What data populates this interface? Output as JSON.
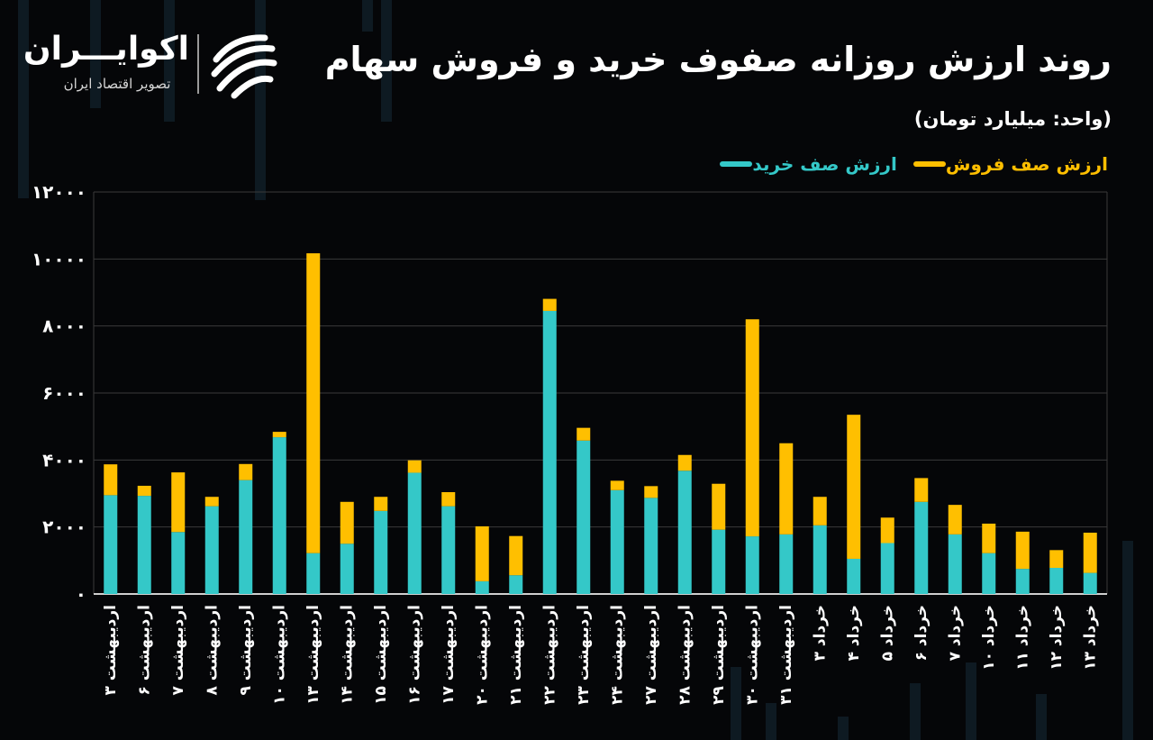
{
  "title": "روند ارزش روزانه صفوف خرید و فروش سهام",
  "unit_label": "(واحد: میلیارد تومان)",
  "logo": {
    "name": "اکوایـــران",
    "subtitle": "تصویر اقتصاد ایران",
    "mark_icon": "ekoiran-swoosh-logo"
  },
  "colors": {
    "background": "#050608",
    "buy": "#34c8c8",
    "sell": "#ffbf00",
    "grid": "#3a3a3a",
    "text": "#ffffff"
  },
  "chart_data": {
    "type": "bar",
    "stacked": true,
    "categories": [
      "۳ اردیبهشت",
      "۶ اردیبهشت",
      "۷ اردیبهشت",
      "۸ اردیبهشت",
      "۹ اردیبهشت",
      "۱۰ اردیبهشت",
      "۱۳ اردیبهشت",
      "۱۴ اردیبهشت",
      "۱۵ اردیبهشت",
      "۱۶ اردیبهشت",
      "۱۷ اردیبهشت",
      "۲۰ اردیبهشت",
      "۲۱ اردیبهشت",
      "۲۲ اردیبهشت",
      "۲۳ اردیبهشت",
      "۲۴ اردیبهشت",
      "۲۷ اردیبهشت",
      "۲۸ اردیبهشت",
      "۲۹ اردیبهشت",
      "۳۰ اردیبهشت",
      "۳۱ اردیبهشت",
      "۳ خرداد",
      "۴ خرداد",
      "۵ خرداد",
      "۶ خرداد",
      "۷ خرداد",
      "۱۰ خرداد",
      "۱۱ خرداد",
      "۱۲ خرداد",
      "۱۳ خرداد"
    ],
    "series": [
      {
        "name": "ارزش صف خرید",
        "color": "#34c8c8",
        "values": [
          2950,
          2930,
          1850,
          2620,
          3400,
          4680,
          1220,
          1500,
          2480,
          3620,
          2620,
          380,
          560,
          8450,
          4580,
          3100,
          2870,
          3680,
          1920,
          1720,
          1780,
          2050,
          1050,
          1520,
          2750,
          1780,
          1220,
          750,
          780,
          630
        ]
      },
      {
        "name": "ارزش صف فروش",
        "color": "#ffbf00",
        "values": [
          920,
          300,
          1780,
          280,
          480,
          160,
          8950,
          1250,
          420,
          370,
          420,
          1640,
          1170,
          360,
          380,
          280,
          350,
          470,
          1370,
          6480,
          2720,
          850,
          4300,
          760,
          710,
          880,
          880,
          1110,
          530,
          1200
        ]
      }
    ],
    "y_ticks": [
      "۰",
      "۲۰۰۰",
      "۴۰۰۰",
      "۶۰۰۰",
      "۸۰۰۰",
      "۱۰۰۰۰",
      "۱۲۰۰۰"
    ],
    "ylim": [
      0,
      12000
    ],
    "grid": true,
    "legend_position": "top-right"
  }
}
